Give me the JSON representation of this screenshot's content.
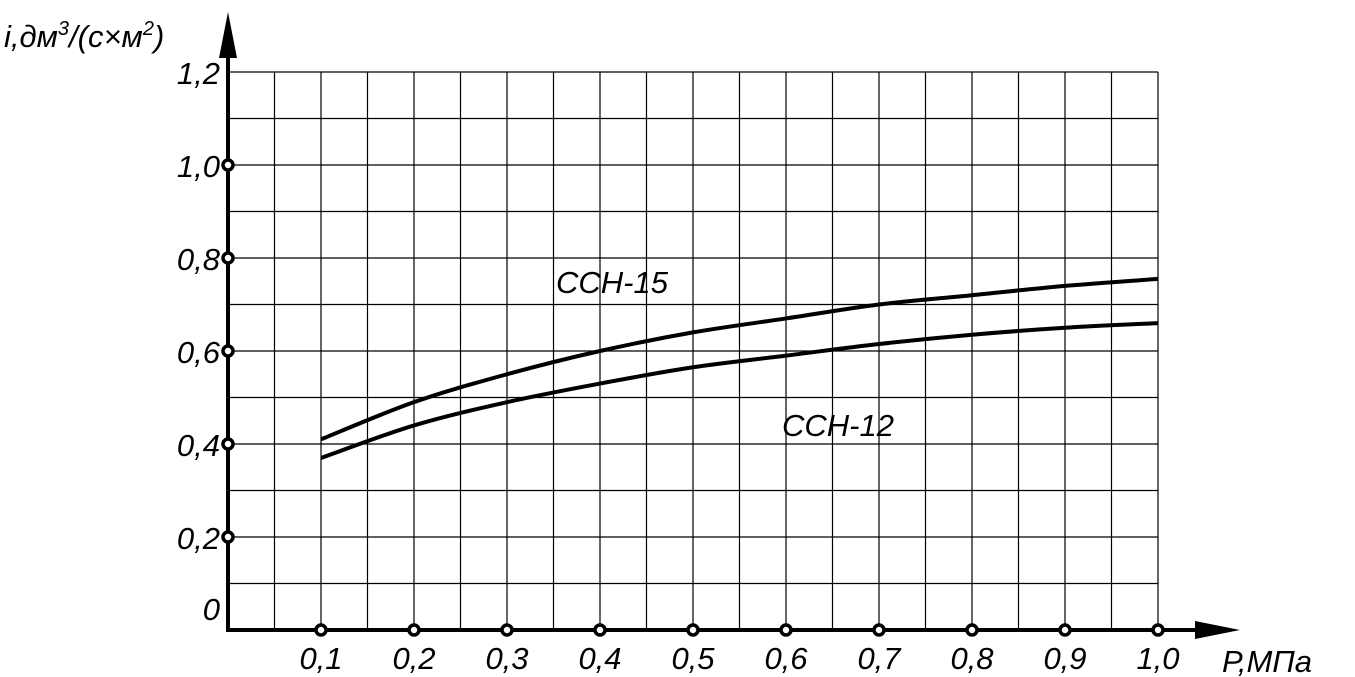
{
  "chart_data": {
    "type": "line",
    "title": "",
    "ylabel": "i,дм³/(с×м²)",
    "ylabel_parts": {
      "base": "i,дм",
      "sup1": "3",
      "mid": "/(с×м",
      "sup2": "2",
      "end": ")"
    },
    "xlabel": "Р,МПа",
    "xlim": [
      0,
      1.0
    ],
    "ylim": [
      0,
      1.2
    ],
    "grid": true,
    "x_ticks": [
      "0,1",
      "0,2",
      "0,3",
      "0,4",
      "0,5",
      "0,6",
      "0,7",
      "0,8",
      "0,9",
      "1,0"
    ],
    "x_tick_values": [
      0.1,
      0.2,
      0.3,
      0.4,
      0.5,
      0.6,
      0.7,
      0.8,
      0.9,
      1.0
    ],
    "y_ticks": [
      "0",
      "0,2",
      "0,4",
      "0,6",
      "0,8",
      "1,0",
      "1,2"
    ],
    "y_tick_values": [
      0,
      0.2,
      0.4,
      0.6,
      0.8,
      1.0,
      1.2
    ],
    "series": [
      {
        "name": "ССН-15",
        "x": [
          0.1,
          0.2,
          0.3,
          0.4,
          0.5,
          0.6,
          0.7,
          0.8,
          0.9,
          1.0
        ],
        "y": [
          0.41,
          0.49,
          0.55,
          0.6,
          0.64,
          0.67,
          0.7,
          0.72,
          0.74,
          0.755
        ]
      },
      {
        "name": "ССН-12",
        "x": [
          0.1,
          0.2,
          0.3,
          0.4,
          0.5,
          0.6,
          0.7,
          0.8,
          0.9,
          1.0
        ],
        "y": [
          0.37,
          0.44,
          0.49,
          0.53,
          0.565,
          0.59,
          0.615,
          0.635,
          0.65,
          0.66
        ]
      }
    ]
  }
}
